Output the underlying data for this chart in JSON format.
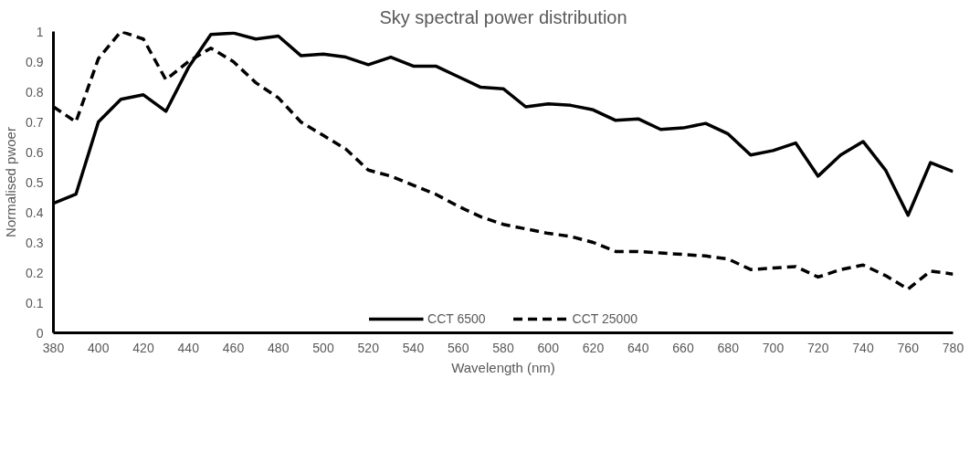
{
  "chart_data": {
    "type": "line",
    "title": "Sky spectral power distribution",
    "xlabel": "Wavelength (nm)",
    "ylabel": "Normalised pwoer",
    "x": [
      380,
      390,
      400,
      410,
      420,
      430,
      440,
      450,
      460,
      470,
      480,
      490,
      500,
      510,
      520,
      530,
      540,
      550,
      560,
      570,
      580,
      590,
      600,
      610,
      620,
      630,
      640,
      650,
      660,
      670,
      680,
      690,
      700,
      710,
      720,
      730,
      740,
      750,
      760,
      770,
      780
    ],
    "series": [
      {
        "name": "CCT 6500",
        "color": "#000000",
        "line_style": "solid",
        "values": [
          0.43,
          0.46,
          0.7,
          0.775,
          0.79,
          0.735,
          0.88,
          0.99,
          0.995,
          0.975,
          0.985,
          0.92,
          0.925,
          0.915,
          0.89,
          0.915,
          0.885,
          0.885,
          0.85,
          0.815,
          0.81,
          0.75,
          0.76,
          0.755,
          0.74,
          0.705,
          0.71,
          0.675,
          0.68,
          0.695,
          0.66,
          0.59,
          0.605,
          0.63,
          0.52,
          0.59,
          0.635,
          0.54,
          0.39,
          0.565,
          0.535
        ]
      },
      {
        "name": "CCT 25000",
        "color": "#000000",
        "line_style": "dashed",
        "values": [
          0.75,
          0.7,
          0.91,
          1.0,
          0.975,
          0.84,
          0.9,
          0.945,
          0.9,
          0.83,
          0.78,
          0.7,
          0.655,
          0.61,
          0.54,
          0.52,
          0.49,
          0.46,
          0.42,
          0.385,
          0.36,
          0.345,
          0.33,
          0.32,
          0.3,
          0.27,
          0.27,
          0.265,
          0.26,
          0.255,
          0.245,
          0.21,
          0.215,
          0.22,
          0.185,
          0.21,
          0.225,
          0.19,
          0.145,
          0.205,
          0.195
        ]
      }
    ],
    "xlim": [
      380,
      780
    ],
    "xticks": [
      380,
      400,
      420,
      440,
      460,
      480,
      500,
      520,
      540,
      560,
      580,
      600,
      620,
      640,
      660,
      680,
      700,
      720,
      740,
      760,
      780
    ],
    "ylim": [
      0,
      1
    ],
    "yticks": [
      0,
      0.1,
      0.2,
      0.3,
      0.4,
      0.5,
      0.6,
      0.7,
      0.8,
      0.9,
      1
    ],
    "grid": false,
    "legend": "bottom",
    "marker": "none"
  }
}
